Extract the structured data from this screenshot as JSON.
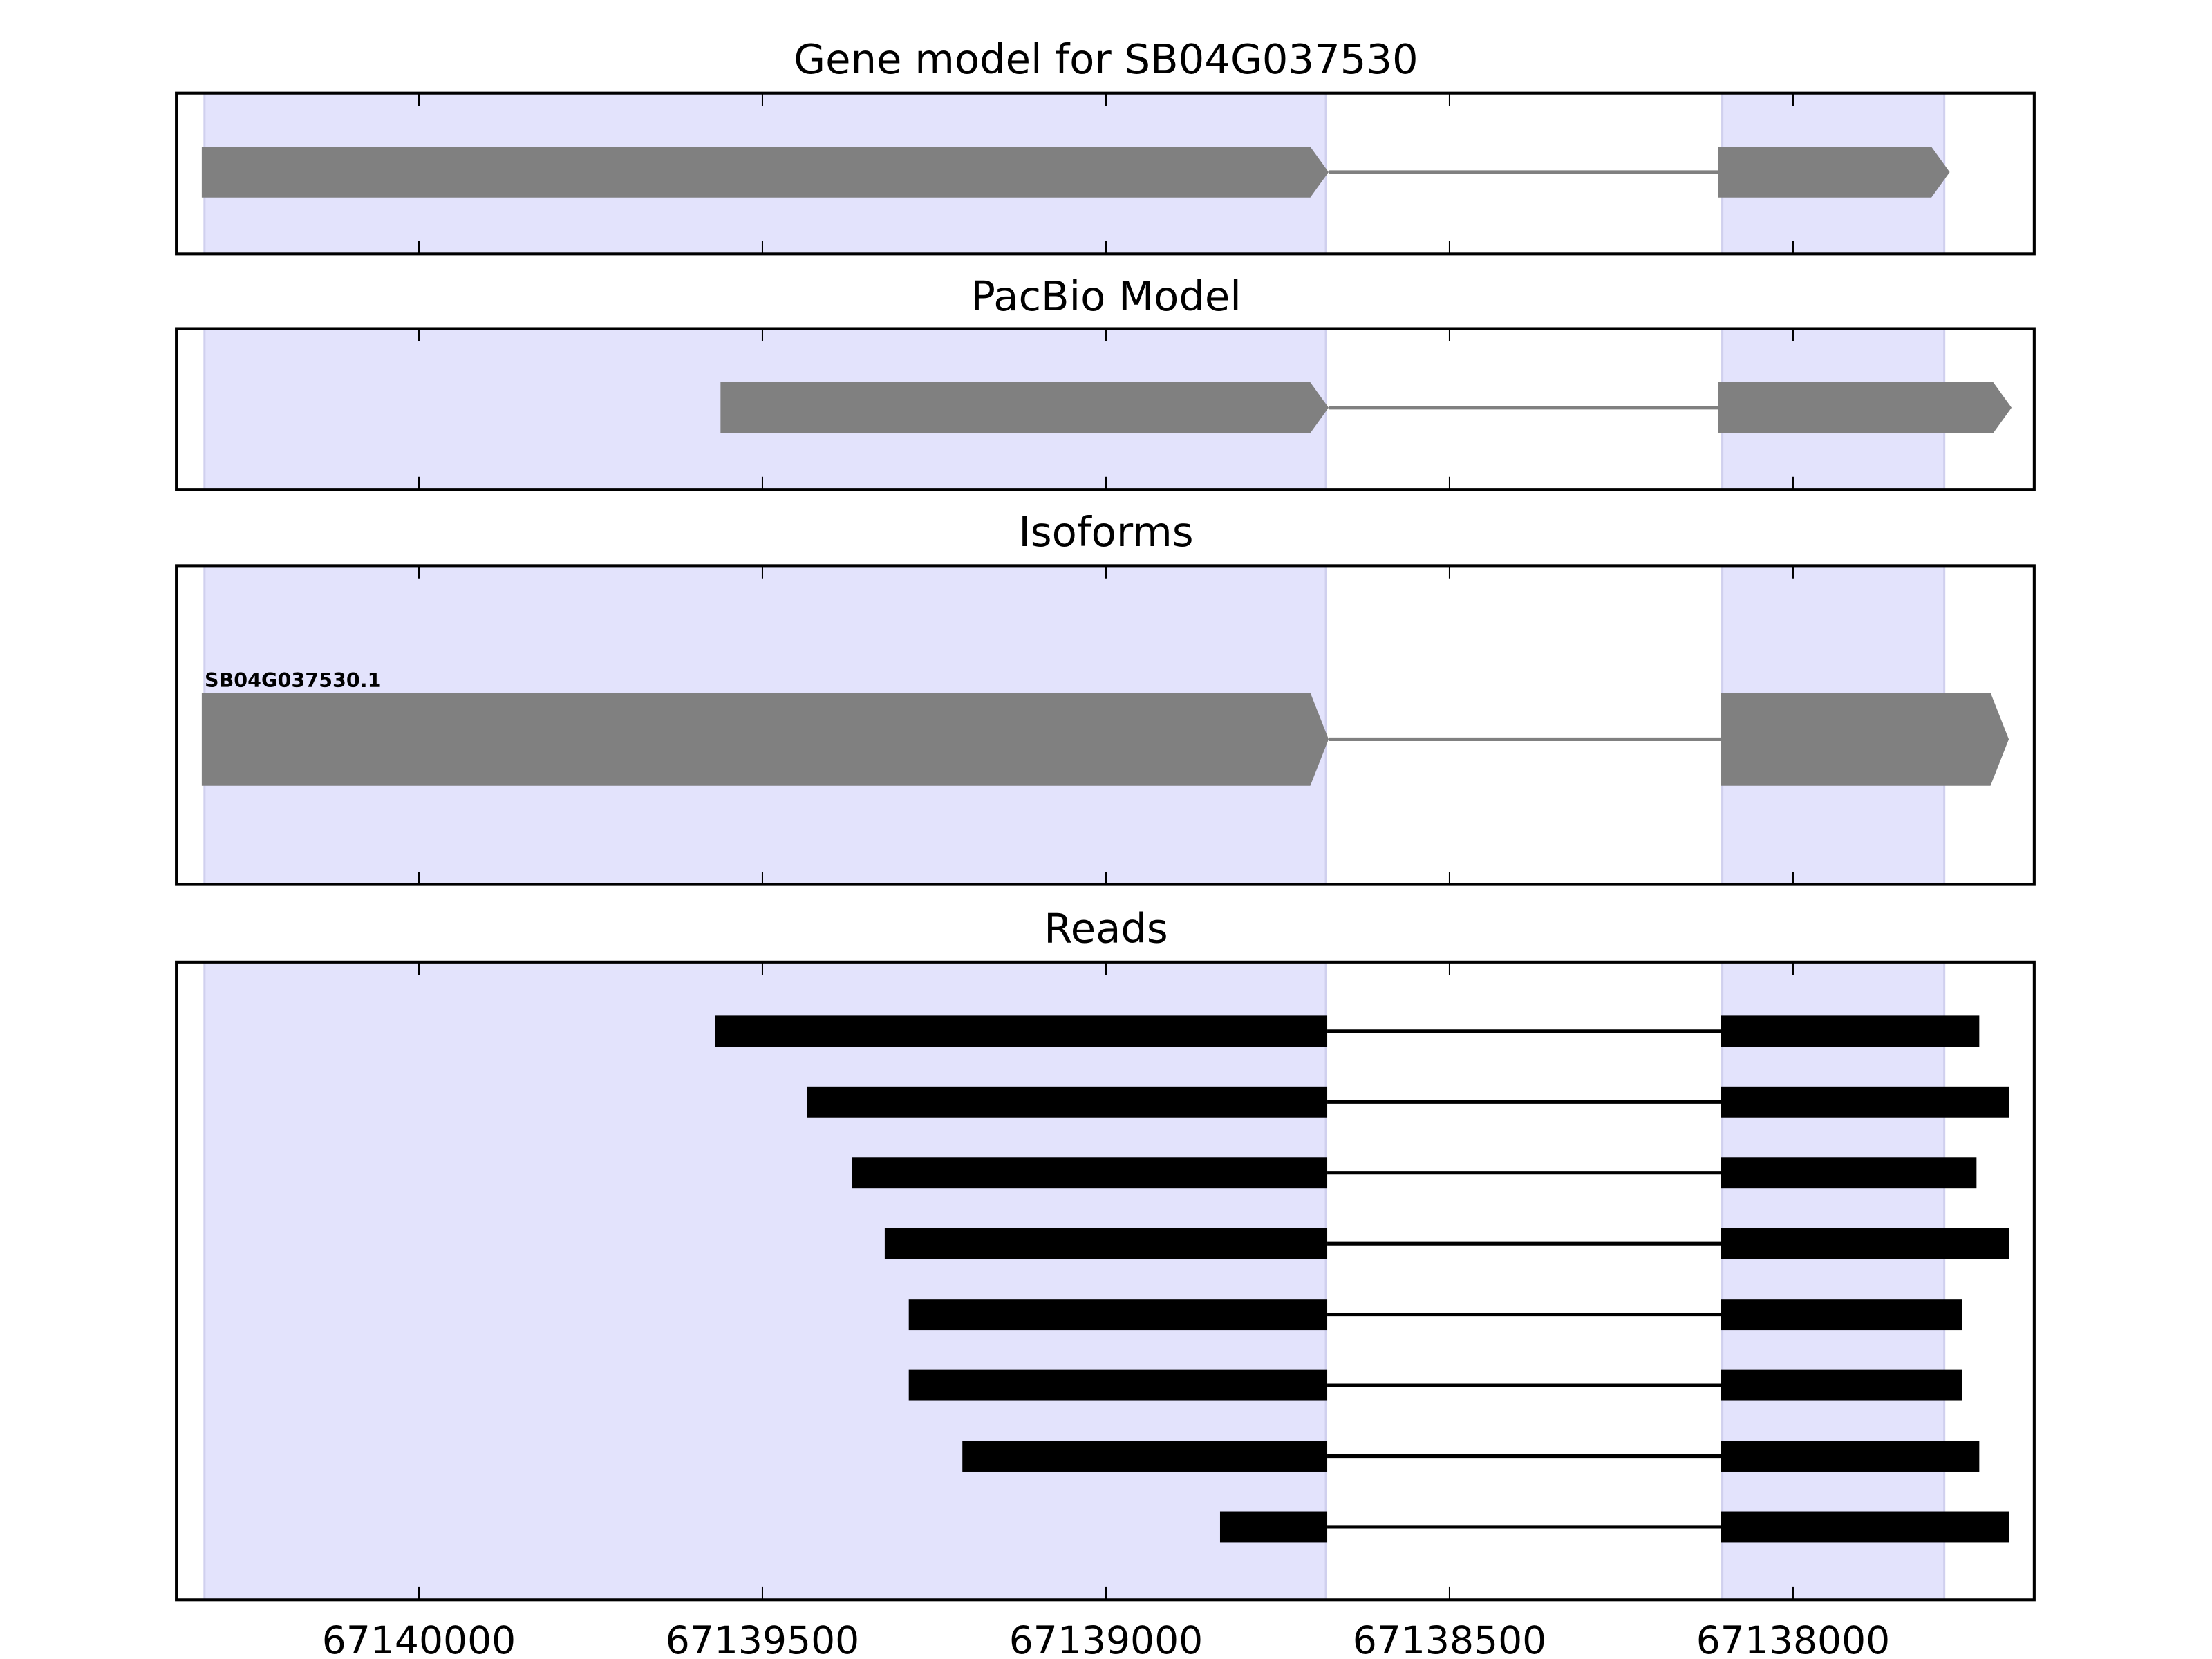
{
  "chart_data": {
    "type": "gene-track",
    "xlim": [
      67140353,
      67137649
    ],
    "xticks": [
      67140000,
      67139500,
      67139000,
      67138500,
      67138000
    ],
    "xtick_labels": [
      "67140000",
      "67139500",
      "67139000",
      "67138500",
      "67138000"
    ],
    "shaded_regions": [
      [
        67140312,
        67138680
      ],
      [
        67138103,
        67137780
      ]
    ],
    "shade_color": "#e3e3fc",
    "panels": [
      {
        "title": "Gene model for SB04G037530",
        "color": "#808080",
        "style": "arrow",
        "features": [
          {
            "label": "",
            "exons": [
              [
                67140316,
                67138676
              ],
              [
                67138109,
                67137772
              ]
            ]
          }
        ]
      },
      {
        "title": "PacBio Model",
        "color": "#808080",
        "style": "arrow",
        "features": [
          {
            "label": "",
            "exons": [
              [
                67139561,
                67138676
              ],
              [
                67138109,
                67137682
              ]
            ]
          }
        ]
      },
      {
        "title": "Isoforms",
        "color": "#808080",
        "style": "arrow",
        "features": [
          {
            "label": "SB04G037530.1",
            "exons": [
              [
                67140316,
                67138676
              ],
              [
                67138105,
                67137686
              ]
            ]
          }
        ]
      },
      {
        "title": "Reads",
        "color": "#000000",
        "style": "box",
        "features": [
          {
            "exons": [
              [
                67139569,
                67138678
              ],
              [
                67138105,
                67137729
              ]
            ]
          },
          {
            "exons": [
              [
                67139435,
                67138678
              ],
              [
                67138105,
                67137686
              ]
            ]
          },
          {
            "exons": [
              [
                67139370,
                67138678
              ],
              [
                67138105,
                67137733
              ]
            ]
          },
          {
            "exons": [
              [
                67139322,
                67138678
              ],
              [
                67138105,
                67137686
              ]
            ]
          },
          {
            "exons": [
              [
                67139287,
                67138678
              ],
              [
                67138105,
                67137754
              ]
            ]
          },
          {
            "exons": [
              [
                67139287,
                67138678
              ],
              [
                67138105,
                67137754
              ]
            ]
          },
          {
            "exons": [
              [
                67139209,
                67138678
              ],
              [
                67138105,
                67137729
              ]
            ]
          },
          {
            "exons": [
              [
                67138834,
                67138678
              ],
              [
                67138105,
                67137686
              ]
            ]
          }
        ]
      }
    ]
  }
}
